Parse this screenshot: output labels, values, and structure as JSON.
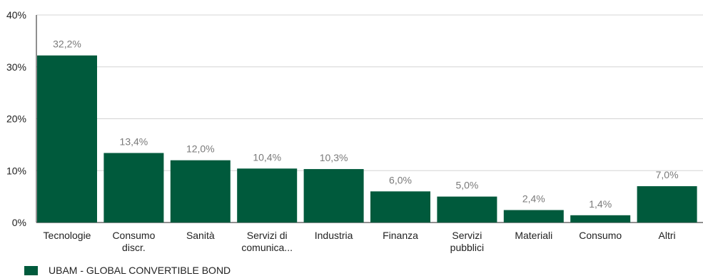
{
  "chart_data": {
    "type": "bar",
    "categories": [
      [
        "Tecnologie"
      ],
      [
        "Consumo",
        "discr."
      ],
      [
        "Sanità"
      ],
      [
        "Servizi di",
        "comunica..."
      ],
      [
        "Industria"
      ],
      [
        "Finanza"
      ],
      [
        "Servizi",
        "pubblici"
      ],
      [
        "Materiali"
      ],
      [
        "Consumo"
      ],
      [
        "Altri"
      ]
    ],
    "series": [
      {
        "name": "UBAM - GLOBAL CONVERTIBLE BOND",
        "values": [
          32.2,
          13.4,
          12.0,
          10.4,
          10.3,
          6.0,
          5.0,
          2.4,
          1.4,
          7.0
        ],
        "value_labels": [
          "32,2%",
          "13,4%",
          "12,0%",
          "10,4%",
          "10,3%",
          "6,0%",
          "5,0%",
          "2,4%",
          "1,4%",
          "7,0%"
        ]
      }
    ],
    "ylim": [
      0,
      40
    ],
    "yticks": [
      0,
      10,
      20,
      30,
      40
    ],
    "ytick_labels": [
      "0%",
      "10%",
      "20%",
      "30%",
      "40%"
    ],
    "grid": true,
    "legend_position": "bottom-left",
    "title": "",
    "xlabel": "",
    "ylabel": ""
  },
  "colors": {
    "bar": "#005a3c",
    "grid": "#d4d4d4",
    "axis": "#222222",
    "data_label": "#7a7a7a"
  }
}
